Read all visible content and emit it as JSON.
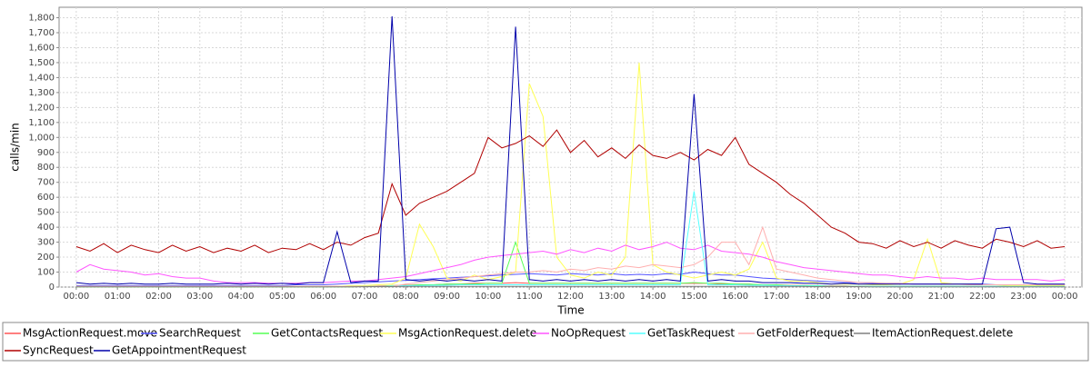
{
  "chart_data": {
    "type": "line",
    "x_label": "Time",
    "y_label": "calls/min",
    "x": [
      0,
      20,
      40,
      60,
      80,
      100,
      120,
      140,
      160,
      180,
      200,
      220,
      240,
      260,
      280,
      300,
      320,
      340,
      360,
      380,
      400,
      420,
      440,
      460,
      480,
      500,
      520,
      540,
      560,
      580,
      600,
      620,
      640,
      660,
      680,
      700,
      720,
      740,
      760,
      780,
      800,
      820,
      840,
      860,
      880,
      900,
      920,
      940,
      960,
      980,
      1000,
      1020,
      1040,
      1060,
      1080,
      1100,
      1120,
      1140,
      1160,
      1180,
      1200,
      1220,
      1240,
      1260,
      1280,
      1300,
      1320,
      1340,
      1360,
      1380,
      1400,
      1420,
      1440
    ],
    "xlim": [
      -25,
      1465
    ],
    "xticks": [
      {
        "value": 0,
        "label": "00:00"
      },
      {
        "value": 60,
        "label": "01:00"
      },
      {
        "value": 120,
        "label": "02:00"
      },
      {
        "value": 180,
        "label": "03:00"
      },
      {
        "value": 240,
        "label": "04:00"
      },
      {
        "value": 300,
        "label": "05:00"
      },
      {
        "value": 360,
        "label": "06:00"
      },
      {
        "value": 420,
        "label": "07:00"
      },
      {
        "value": 480,
        "label": "08:00"
      },
      {
        "value": 540,
        "label": "09:00"
      },
      {
        "value": 600,
        "label": "10:00"
      },
      {
        "value": 660,
        "label": "11:00"
      },
      {
        "value": 720,
        "label": "12:00"
      },
      {
        "value": 780,
        "label": "13:00"
      },
      {
        "value": 840,
        "label": "14:00"
      },
      {
        "value": 900,
        "label": "15:00"
      },
      {
        "value": 960,
        "label": "16:00"
      },
      {
        "value": 1020,
        "label": "17:00"
      },
      {
        "value": 1080,
        "label": "18:00"
      },
      {
        "value": 1140,
        "label": "19:00"
      },
      {
        "value": 1200,
        "label": "20:00"
      },
      {
        "value": 1260,
        "label": "21:00"
      },
      {
        "value": 1320,
        "label": "22:00"
      },
      {
        "value": 1380,
        "label": "23:00"
      },
      {
        "value": 1440,
        "label": "00:00"
      }
    ],
    "ylim": [
      0,
      1870
    ],
    "yticks": [
      0,
      100,
      200,
      300,
      400,
      500,
      600,
      700,
      800,
      900,
      {
        "value": 1000,
        "label": "1,000"
      },
      {
        "value": 1100,
        "label": "1,100"
      },
      {
        "value": 1200,
        "label": "1,200"
      },
      {
        "value": 1300,
        "label": "1,300"
      },
      {
        "value": 1400,
        "label": "1,400"
      },
      {
        "value": 1500,
        "label": "1,500"
      },
      {
        "value": 1600,
        "label": "1,600"
      },
      {
        "value": 1700,
        "label": "1,700"
      },
      {
        "value": 1800,
        "label": "1,800"
      }
    ],
    "grid": true,
    "series": [
      {
        "name": "MsgActionRequest.move",
        "color": "#ff5555",
        "values": [
          3,
          3,
          3,
          3,
          3,
          3,
          3,
          3,
          3,
          3,
          3,
          3,
          3,
          3,
          3,
          3,
          3,
          3,
          3,
          5,
          5,
          5,
          8,
          10,
          12,
          15,
          15,
          20,
          20,
          25,
          25,
          25,
          30,
          25,
          25,
          25,
          25,
          25,
          25,
          25,
          25,
          25,
          25,
          25,
          25,
          25,
          25,
          20,
          20,
          20,
          15,
          15,
          12,
          10,
          10,
          8,
          8,
          5,
          5,
          5,
          5,
          5,
          5,
          5,
          5,
          5,
          5,
          5,
          5,
          5,
          5,
          5,
          5
        ]
      },
      {
        "name": "SearchRequest",
        "color": "#5555ff",
        "values": [
          10,
          10,
          10,
          10,
          10,
          10,
          10,
          10,
          10,
          10,
          10,
          10,
          10,
          10,
          10,
          10,
          15,
          15,
          15,
          20,
          25,
          30,
          35,
          40,
          45,
          50,
          55,
          60,
          65,
          70,
          75,
          80,
          85,
          90,
          85,
          80,
          90,
          85,
          80,
          90,
          80,
          85,
          80,
          90,
          85,
          100,
          90,
          80,
          80,
          70,
          60,
          55,
          50,
          45,
          40,
          35,
          30,
          30,
          25,
          25,
          25,
          20,
          20,
          20,
          20,
          20,
          20,
          15,
          15,
          15,
          15,
          15,
          15
        ]
      },
      {
        "name": "GetContactsRequest",
        "color": "#55ff55",
        "values": [
          2,
          2,
          2,
          2,
          2,
          2,
          2,
          2,
          2,
          2,
          2,
          2,
          2,
          2,
          2,
          2,
          2,
          2,
          2,
          2,
          2,
          5,
          5,
          10,
          10,
          15,
          15,
          20,
          20,
          20,
          25,
          25,
          300,
          25,
          25,
          25,
          25,
          25,
          25,
          25,
          25,
          25,
          25,
          25,
          25,
          30,
          25,
          25,
          20,
          20,
          15,
          15,
          10,
          10,
          10,
          5,
          5,
          5,
          5,
          5,
          5,
          5,
          5,
          5,
          5,
          5,
          5,
          5,
          5,
          5,
          5,
          5,
          5
        ]
      },
      {
        "name": "MsgActionRequest.delete",
        "color": "#ffff55",
        "values": [
          5,
          5,
          5,
          5,
          5,
          5,
          5,
          5,
          5,
          5,
          5,
          5,
          5,
          5,
          5,
          5,
          5,
          5,
          5,
          5,
          10,
          10,
          15,
          20,
          60,
          420,
          270,
          60,
          40,
          80,
          50,
          70,
          100,
          1360,
          1140,
          200,
          80,
          60,
          100,
          80,
          200,
          1500,
          150,
          100,
          80,
          60,
          80,
          100,
          80,
          120,
          300,
          60,
          40,
          40,
          30,
          20,
          20,
          20,
          15,
          15,
          20,
          50,
          320,
          30,
          20,
          20,
          15,
          15,
          10,
          10,
          10,
          10,
          10
        ]
      },
      {
        "name": "NoOpRequest",
        "color": "#ff55ff",
        "values": [
          100,
          150,
          120,
          110,
          100,
          80,
          90,
          70,
          60,
          60,
          40,
          30,
          30,
          30,
          25,
          25,
          25,
          30,
          30,
          35,
          40,
          40,
          50,
          60,
          70,
          90,
          110,
          130,
          150,
          180,
          200,
          210,
          220,
          230,
          240,
          220,
          250,
          230,
          260,
          240,
          280,
          250,
          270,
          300,
          260,
          250,
          280,
          240,
          230,
          220,
          200,
          170,
          150,
          130,
          120,
          110,
          100,
          90,
          80,
          80,
          70,
          60,
          70,
          60,
          60,
          50,
          60,
          50,
          50,
          50,
          50,
          40,
          50
        ]
      },
      {
        "name": "GetTaskRequest",
        "color": "#55ffff",
        "values": [
          3,
          3,
          3,
          3,
          3,
          3,
          3,
          3,
          3,
          3,
          3,
          3,
          3,
          3,
          3,
          3,
          3,
          3,
          3,
          3,
          5,
          5,
          5,
          8,
          10,
          10,
          12,
          12,
          15,
          15,
          15,
          15,
          15,
          15,
          15,
          15,
          15,
          15,
          15,
          15,
          15,
          15,
          15,
          15,
          15,
          640,
          15,
          15,
          15,
          12,
          12,
          10,
          10,
          8,
          8,
          5,
          5,
          5,
          5,
          5,
          5,
          5,
          5,
          5,
          5,
          5,
          5,
          5,
          5,
          5,
          5,
          5,
          5
        ]
      },
      {
        "name": "GetFolderRequest",
        "color": "#ffafaf",
        "values": [
          5,
          5,
          5,
          5,
          5,
          5,
          5,
          5,
          5,
          5,
          5,
          5,
          5,
          5,
          5,
          5,
          5,
          5,
          5,
          5,
          5,
          5,
          5,
          5,
          20,
          30,
          40,
          50,
          60,
          70,
          80,
          90,
          100,
          100,
          110,
          100,
          120,
          110,
          130,
          120,
          140,
          130,
          150,
          140,
          130,
          150,
          200,
          300,
          300,
          150,
          400,
          120,
          100,
          80,
          60,
          50,
          40,
          30,
          30,
          25,
          25,
          20,
          20,
          20,
          20,
          15,
          15,
          15,
          15,
          15,
          15,
          15,
          15
        ]
      },
      {
        "name": "ItemActionRequest.delete",
        "color": "#808080",
        "values": [
          2,
          2,
          2,
          2,
          2,
          2,
          2,
          2,
          2,
          2,
          2,
          2,
          2,
          2,
          2,
          2,
          2,
          2,
          2,
          2,
          2,
          3,
          3,
          3,
          4,
          4,
          5,
          5,
          5,
          5,
          5,
          5,
          5,
          5,
          5,
          5,
          5,
          5,
          5,
          5,
          5,
          5,
          5,
          5,
          5,
          5,
          5,
          5,
          5,
          5,
          5,
          4,
          4,
          4,
          3,
          3,
          3,
          3,
          2,
          2,
          2,
          2,
          2,
          2,
          2,
          2,
          2,
          2,
          2,
          2,
          2,
          2,
          2
        ]
      },
      {
        "name": "SyncRequest",
        "color": "#b00000",
        "values": [
          270,
          240,
          290,
          230,
          280,
          250,
          230,
          280,
          240,
          270,
          230,
          260,
          240,
          280,
          230,
          260,
          250,
          290,
          250,
          300,
          280,
          330,
          360,
          690,
          480,
          560,
          600,
          640,
          700,
          760,
          1000,
          930,
          960,
          1010,
          940,
          1050,
          900,
          980,
          870,
          930,
          860,
          950,
          880,
          860,
          900,
          850,
          920,
          880,
          1000,
          820,
          760,
          700,
          620,
          560,
          480,
          400,
          360,
          300,
          290,
          260,
          310,
          270,
          300,
          260,
          310,
          280,
          260,
          320,
          300,
          270,
          310,
          260,
          270
        ]
      },
      {
        "name": "GetAppointmentRequest",
        "color": "#0000aa",
        "values": [
          30,
          20,
          25,
          20,
          25,
          20,
          20,
          25,
          20,
          20,
          20,
          25,
          20,
          25,
          20,
          25,
          20,
          30,
          30,
          370,
          30,
          40,
          40,
          1810,
          50,
          40,
          50,
          40,
          50,
          40,
          50,
          40,
          1740,
          50,
          40,
          50,
          40,
          50,
          40,
          50,
          40,
          50,
          40,
          50,
          40,
          1290,
          40,
          50,
          40,
          40,
          30,
          30,
          30,
          25,
          25,
          20,
          25,
          20,
          20,
          20,
          20,
          20,
          20,
          20,
          20,
          20,
          20,
          390,
          400,
          30,
          20,
          20,
          20
        ]
      }
    ]
  }
}
